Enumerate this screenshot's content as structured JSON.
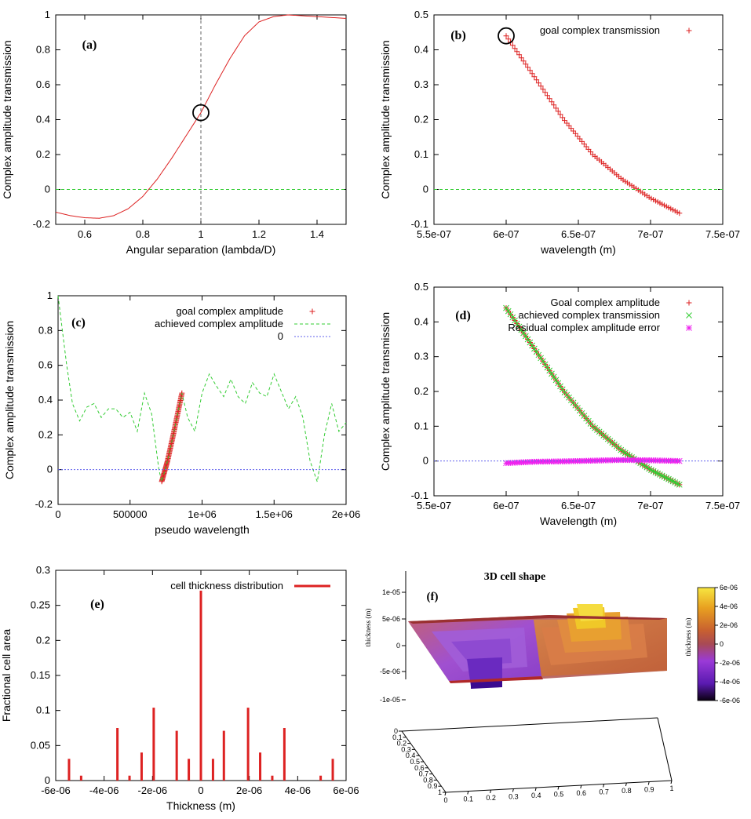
{
  "colors": {
    "goal": "#dd2222",
    "achieved": "#33cc33",
    "zero_line": "#33cc33",
    "zero_blue": "#6060ee",
    "residual": "#ee22ee",
    "axis": "#000000",
    "dashed_vertical": "#666666"
  },
  "chart_data": [
    {
      "panel_label": "(a)",
      "type": "line",
      "xlabel": "Angular separation (lambda/D)",
      "ylabel": "Complex amplitude transmission",
      "xlim": [
        0.5,
        1.5
      ],
      "ylim": [
        -0.2,
        1
      ],
      "xticks": [
        "0.6",
        "0.8",
        "1",
        "1.2",
        "1.4"
      ],
      "xtick_values": [
        0.6,
        0.8,
        1.0,
        1.2,
        1.4
      ],
      "yticks": [
        "-0.2",
        "0",
        "0.2",
        "0.4",
        "0.6",
        "0.8",
        "1"
      ],
      "ytick_values": [
        -0.2,
        0,
        0.2,
        0.4,
        0.6,
        0.8,
        1
      ],
      "series": [
        {
          "style": "line",
          "color": "#dd2222",
          "x": [
            0.5,
            0.55,
            0.6,
            0.65,
            0.7,
            0.75,
            0.8,
            0.85,
            0.9,
            0.95,
            1.0,
            1.05,
            1.1,
            1.15,
            1.2,
            1.25,
            1.3,
            1.35,
            1.4,
            1.45,
            1.5
          ],
          "y": [
            -0.13,
            -0.15,
            -0.162,
            -0.165,
            -0.15,
            -0.11,
            -0.04,
            0.06,
            0.18,
            0.31,
            0.44,
            0.6,
            0.75,
            0.88,
            0.96,
            0.99,
            1.0,
            0.995,
            0.99,
            0.985,
            0.98
          ]
        },
        {
          "style": "dashed",
          "color": "#33cc33",
          "x": [
            0.5,
            1.5
          ],
          "y": [
            0,
            0
          ]
        }
      ],
      "annotations": {
        "vertical_dashed_x": 1.0,
        "circle": {
          "x": 1.0,
          "y": 0.44
        }
      }
    },
    {
      "panel_label": "(b)",
      "type": "scatter",
      "xlabel": "wavelength (m)",
      "ylabel": "Complex amplitude transmission",
      "xlim": [
        5.5e-07,
        7.5e-07
      ],
      "ylim": [
        -0.1,
        0.5
      ],
      "xticks": [
        "5.5e-07",
        "6e-07",
        "6.5e-07",
        "7e-07",
        "7.5e-07"
      ],
      "xtick_values": [
        5.5e-07,
        6e-07,
        6.5e-07,
        7e-07,
        7.5e-07
      ],
      "yticks": [
        "-0.1",
        "0",
        "0.1",
        "0.2",
        "0.3",
        "0.4",
        "0.5"
      ],
      "ytick_values": [
        -0.1,
        0,
        0.1,
        0.2,
        0.3,
        0.4,
        0.5
      ],
      "legend": [
        "goal complex transmission"
      ],
      "legend_position": "top-right",
      "series": [
        {
          "name": "goal complex transmission",
          "style": "plus",
          "color": "#dd2222",
          "x_range": [
            6e-07,
            7.2e-07
          ],
          "y_at": [
            [
              6e-07,
              0.44
            ],
            [
              6.2e-07,
              0.32
            ],
            [
              6.4e-07,
              0.2
            ],
            [
              6.6e-07,
              0.1
            ],
            [
              6.8e-07,
              0.03
            ],
            [
              7e-07,
              -0.025
            ],
            [
              7.2e-07,
              -0.068
            ]
          ]
        },
        {
          "style": "dashed",
          "color": "#33cc33",
          "x": [
            5.5e-07,
            7.5e-07
          ],
          "y": [
            0,
            0
          ]
        }
      ],
      "annotations": {
        "circle": {
          "x": 6e-07,
          "y": 0.44
        }
      }
    },
    {
      "panel_label": "(c)",
      "type": "line",
      "xlabel": "pseudo wavelength",
      "ylabel": "Complex amplitude transmission",
      "xlim": [
        0,
        2000000
      ],
      "ylim": [
        -0.2,
        1
      ],
      "xticks": [
        "0",
        "500000",
        "1e+06",
        "1.5e+06",
        "2e+06"
      ],
      "xtick_values": [
        0,
        500000,
        1000000,
        1500000,
        2000000
      ],
      "yticks": [
        "-0.2",
        "0",
        "0.2",
        "0.4",
        "0.6",
        "0.8",
        "1"
      ],
      "ytick_values": [
        -0.2,
        0,
        0.2,
        0.4,
        0.6,
        0.8,
        1
      ],
      "legend": [
        "goal complex amplitude",
        "achieved complex amplitude",
        "0"
      ],
      "legend_position": "top-right",
      "series": [
        {
          "name": "goal complex amplitude",
          "style": "plus",
          "color": "#dd2222",
          "x_range": [
            720000,
            860000
          ],
          "y_at": [
            [
              720000,
              -0.068
            ],
            [
              760000,
              0.05
            ],
            [
              800000,
              0.2
            ],
            [
              830000,
              0.32
            ],
            [
              860000,
              0.44
            ]
          ]
        },
        {
          "name": "achieved complex amplitude",
          "style": "dashed",
          "color": "#33cc33",
          "x": [
            0,
            30000,
            60000,
            100000,
            150000,
            200000,
            250000,
            300000,
            350000,
            400000,
            450000,
            500000,
            550000,
            600000,
            650000,
            700000,
            720000,
            760000,
            800000,
            860000,
            900000,
            950000,
            1000000,
            1050000,
            1100000,
            1150000,
            1200000,
            1250000,
            1300000,
            1350000,
            1400000,
            1450000,
            1500000,
            1550000,
            1600000,
            1650000,
            1700000,
            1750000,
            1800000,
            1850000,
            1900000,
            1950000,
            2000000
          ],
          "y": [
            1.0,
            0.8,
            0.6,
            0.38,
            0.28,
            0.36,
            0.38,
            0.3,
            0.35,
            0.35,
            0.3,
            0.33,
            0.22,
            0.44,
            0.32,
            0.0,
            -0.068,
            0.05,
            0.2,
            0.44,
            0.3,
            0.22,
            0.44,
            0.55,
            0.48,
            0.42,
            0.52,
            0.42,
            0.38,
            0.5,
            0.44,
            0.42,
            0.55,
            0.45,
            0.35,
            0.42,
            0.3,
            0.05,
            -0.07,
            0.2,
            0.38,
            0.22,
            0.27
          ]
        },
        {
          "name": "0",
          "style": "dotted",
          "color": "#6060ee",
          "x": [
            0,
            2000000
          ],
          "y": [
            0,
            0
          ]
        }
      ]
    },
    {
      "panel_label": "(d)",
      "type": "scatter",
      "xlabel": "Wavelength (m)",
      "ylabel": "Complex amplitude transmission",
      "xlim": [
        5.5e-07,
        7.5e-07
      ],
      "ylim": [
        -0.1,
        0.5
      ],
      "xticks": [
        "5.5e-07",
        "6e-07",
        "6.5e-07",
        "7e-07",
        "7.5e-07"
      ],
      "xtick_values": [
        5.5e-07,
        6e-07,
        6.5e-07,
        7e-07,
        7.5e-07
      ],
      "yticks": [
        "-0.1",
        "0",
        "0.1",
        "0.2",
        "0.3",
        "0.4",
        "0.5"
      ],
      "ytick_values": [
        -0.1,
        0,
        0.1,
        0.2,
        0.3,
        0.4,
        0.5
      ],
      "legend": [
        "Goal complex amplitude",
        "achieved complex transmission",
        "Residual complex amplitude error"
      ],
      "legend_position": "top-right",
      "series": [
        {
          "name": "Goal complex amplitude",
          "style": "plus",
          "color": "#dd2222",
          "x_range": [
            6e-07,
            7.2e-07
          ],
          "y_at": [
            [
              6e-07,
              0.44
            ],
            [
              6.2e-07,
              0.32
            ],
            [
              6.4e-07,
              0.2
            ],
            [
              6.6e-07,
              0.1
            ],
            [
              6.8e-07,
              0.03
            ],
            [
              7e-07,
              -0.025
            ],
            [
              7.2e-07,
              -0.068
            ]
          ]
        },
        {
          "name": "achieved complex transmission",
          "style": "cross",
          "color": "#33cc33",
          "x_range": [
            6e-07,
            7.2e-07
          ],
          "y_at": [
            [
              6e-07,
              0.44
            ],
            [
              6.2e-07,
              0.32
            ],
            [
              6.4e-07,
              0.2
            ],
            [
              6.6e-07,
              0.1
            ],
            [
              6.8e-07,
              0.03
            ],
            [
              7e-07,
              -0.025
            ],
            [
              7.2e-07,
              -0.068
            ]
          ]
        },
        {
          "name": "Residual complex amplitude error",
          "style": "star",
          "color": "#ee22ee",
          "x_range": [
            6e-07,
            7.2e-07
          ],
          "y_at": [
            [
              6e-07,
              -0.006
            ],
            [
              6.2e-07,
              -0.002
            ],
            [
              6.4e-07,
              -0.001
            ],
            [
              6.6e-07,
              0.001
            ],
            [
              6.8e-07,
              0.003
            ],
            [
              7e-07,
              0.002
            ],
            [
              7.2e-07,
              0.0
            ]
          ]
        },
        {
          "style": "dotted",
          "color": "#6060ee",
          "x": [
            5.5e-07,
            7.5e-07
          ],
          "y": [
            0,
            0
          ]
        }
      ]
    },
    {
      "panel_label": "(e)",
      "type": "bar",
      "xlabel": "Thickness (m)",
      "ylabel": "Fractional cell area",
      "xlim": [
        -6e-06,
        6e-06
      ],
      "ylim": [
        0,
        0.3
      ],
      "xticks": [
        "-6e-06",
        "-4e-06",
        "-2e-06",
        "0",
        "2e-06",
        "4e-06",
        "6e-06"
      ],
      "xtick_values": [
        -6e-06,
        -4e-06,
        -2e-06,
        0,
        2e-06,
        4e-06,
        6e-06
      ],
      "yticks": [
        "0",
        "0.05",
        "0.1",
        "0.15",
        "0.2",
        "0.25",
        "0.3"
      ],
      "ytick_values": [
        0,
        0.05,
        0.1,
        0.15,
        0.2,
        0.25,
        0.3
      ],
      "legend": [
        "cell thickness distribution"
      ],
      "legend_position": "top-right",
      "series": [
        {
          "name": "cell thickness distribution",
          "color": "#dd2222",
          "x": [
            -5.45e-06,
            -4.95e-06,
            -3.45e-06,
            -2.95e-06,
            -2.45e-06,
            -1.95e-06,
            -1e-06,
            -5e-07,
            0.0,
            5e-07,
            9.5e-07,
            1.95e-06,
            2.45e-06,
            2.95e-06,
            3.45e-06,
            4.95e-06,
            5.45e-06
          ],
          "values": [
            0.031,
            0.007,
            0.075,
            0.007,
            0.04,
            0.104,
            0.071,
            0.031,
            0.271,
            0.031,
            0.071,
            0.104,
            0.04,
            0.007,
            0.075,
            0.007,
            0.031
          ]
        }
      ]
    },
    {
      "panel_label": "(f)",
      "type": "heatmap",
      "title": "3D cell shape",
      "zlabel": "thickness (m)",
      "zticks": [
        "1e-05",
        "5e-06",
        "0",
        "-5e-06",
        "-1e-05"
      ],
      "xticks": [
        "0",
        "0.1",
        "0.2",
        "0.3",
        "0.4",
        "0.5",
        "0.6",
        "0.7",
        "0.8",
        "0.9",
        "1"
      ],
      "yticks": [
        "0",
        "0.1",
        "0.2",
        "0.3",
        "0.4",
        "0.5",
        "0.6",
        "0.7",
        "0.8",
        "0.9",
        "1"
      ],
      "colorbar_label": "thickness (m)",
      "colorbar_ticks": [
        "6e-06",
        "4e-06",
        "2e-06",
        "0",
        "-2e-06",
        "-4e-06",
        "-6e-06"
      ],
      "colorbar_range": [
        -6e-06,
        6e-06
      ]
    }
  ]
}
